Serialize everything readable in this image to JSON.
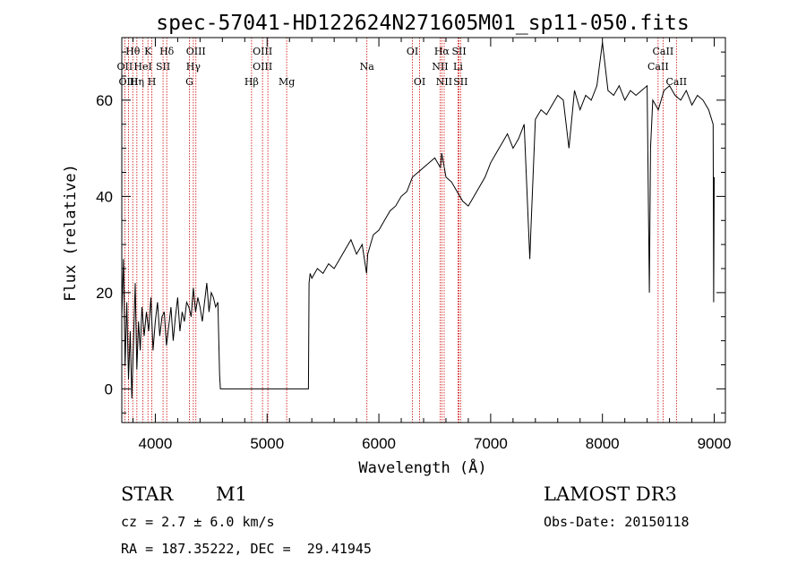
{
  "chart_data": {
    "type": "line",
    "title": "spec-57041-HD122624N271605M01_sp11-050.fits",
    "xlabel": "Wavelength (Å)",
    "ylabel": "Flux (relative)",
    "xlim": [
      3700,
      9100
    ],
    "ylim": [
      -7,
      73
    ],
    "xticks": [
      4000,
      5000,
      6000,
      7000,
      8000,
      9000
    ],
    "yticks": [
      0,
      20,
      40,
      60
    ],
    "grid": false,
    "series": [
      {
        "x": [
          3700,
          3715,
          3730,
          3745,
          3760,
          3775,
          3790,
          3805,
          3820,
          3835,
          3850,
          3865,
          3880,
          3900,
          3920,
          3940,
          3960,
          3980,
          4000,
          4020,
          4040,
          4060,
          4080,
          4100,
          4120,
          4140,
          4160,
          4180,
          4200,
          4220,
          4240,
          4260,
          4280,
          4300,
          4320,
          4340,
          4360,
          4380,
          4400,
          4420,
          4440,
          4460,
          4480,
          4500,
          4520,
          4540,
          4560,
          4575,
          4582,
          4700,
          4800,
          4900,
          5000,
          5100,
          5200,
          5300,
          5370,
          5375,
          5385,
          5400,
          5450,
          5500,
          5550,
          5600,
          5650,
          5700,
          5750,
          5800,
          5850,
          5890,
          5900,
          5950,
          6000,
          6050,
          6100,
          6150,
          6200,
          6250,
          6300,
          6350,
          6400,
          6450,
          6500,
          6550,
          6562,
          6600,
          6650,
          6700,
          6750,
          6800,
          6850,
          6900,
          6950,
          7000,
          7050,
          7100,
          7150,
          7200,
          7250,
          7300,
          7350,
          7360,
          7400,
          7450,
          7500,
          7550,
          7600,
          7650,
          7700,
          7750,
          7800,
          7850,
          7900,
          7950,
          8000,
          8050,
          8100,
          8150,
          8200,
          8250,
          8300,
          8350,
          8400,
          8420,
          8430,
          8450,
          8500,
          8550,
          8600,
          8650,
          8700,
          8750,
          8800,
          8850,
          8900,
          8950,
          8990,
          8995,
          9000
        ],
        "y": [
          15,
          27,
          5,
          18,
          2,
          12,
          -2,
          10,
          22,
          4,
          14,
          8,
          17,
          11,
          16,
          12,
          19,
          8,
          14,
          18,
          11,
          15,
          16,
          9,
          13,
          17,
          10,
          15,
          19,
          12,
          16,
          14,
          18,
          17,
          15,
          21,
          16,
          19,
          17,
          14,
          18,
          22,
          16,
          20,
          19,
          17,
          18,
          3,
          0,
          0,
          0,
          0,
          0,
          0,
          0,
          0,
          0,
          22,
          24,
          23,
          25,
          24,
          26,
          25,
          27,
          29,
          31,
          28,
          30,
          24,
          28,
          32,
          33,
          35,
          37,
          38,
          40,
          41,
          44,
          45,
          46,
          47,
          48,
          46,
          49,
          44,
          43,
          41,
          39,
          38,
          40,
          42,
          44,
          47,
          49,
          51,
          53,
          50,
          52,
          55,
          27,
          33,
          56,
          58,
          57,
          59,
          61,
          60,
          50,
          62,
          58,
          61,
          60,
          63,
          72,
          62,
          61,
          63,
          60,
          62,
          61,
          62,
          63,
          20,
          50,
          60,
          58,
          62,
          63,
          61,
          60,
          62,
          59,
          61,
          60,
          58,
          55,
          18,
          44
        ]
      }
    ],
    "line_markers": [
      {
        "label": "Hθ",
        "x": 3798,
        "row": 1
      },
      {
        "label": "OII",
        "x": 3727,
        "row": 2
      },
      {
        "label": "OIII",
        "x": 3760,
        "row": 3
      },
      {
        "label": "K",
        "x": 3934,
        "row": 1
      },
      {
        "label": "HeI",
        "x": 3889,
        "row": 2
      },
      {
        "label": "Hη",
        "x": 3835,
        "row": 3
      },
      {
        "label": "Hδ",
        "x": 4102,
        "row": 1
      },
      {
        "label": "SII",
        "x": 4069,
        "row": 2
      },
      {
        "label": "H",
        "x": 3969,
        "row": 3
      },
      {
        "label": "OIII",
        "x": 4363,
        "row": 1
      },
      {
        "label": "Hγ",
        "x": 4340,
        "row": 2
      },
      {
        "label": "G",
        "x": 4305,
        "row": 3
      },
      {
        "label": "OIII",
        "x": 4959,
        "row": 1
      },
      {
        "label": "OIII",
        "x": 4959,
        "row": 2
      },
      {
        "label": "Hβ",
        "x": 4861,
        "row": 3
      },
      {
        "label": "Mg",
        "x": 5175,
        "row": 3
      },
      {
        "label": "Na",
        "x": 5893,
        "row": 2
      },
      {
        "label": "OI",
        "x": 6300,
        "row": 1
      },
      {
        "label": "OI",
        "x": 6364,
        "row": 3
      },
      {
        "label": "Hα",
        "x": 6563,
        "row": 1
      },
      {
        "label": "SII",
        "x": 6717,
        "row": 1
      },
      {
        "label": "NII",
        "x": 6548,
        "row": 2
      },
      {
        "label": "Li",
        "x": 6708,
        "row": 2
      },
      {
        "label": "NII",
        "x": 6584,
        "row": 3
      },
      {
        "label": "SII",
        "x": 6731,
        "row": 3
      },
      {
        "label": "CaII",
        "x": 8542,
        "row": 1
      },
      {
        "label": "CaII",
        "x": 8498,
        "row": 2
      },
      {
        "label": "CaII",
        "x": 8662,
        "row": 3
      }
    ],
    "marker_lines": [
      3727,
      3760,
      3798,
      3835,
      3889,
      3934,
      3969,
      4069,
      4102,
      4305,
      4340,
      4363,
      4861,
      4959,
      5007,
      5175,
      5893,
      6300,
      6364,
      6548,
      6563,
      6584,
      6708,
      6717,
      6731,
      8498,
      8542,
      8662
    ],
    "marker_color": "#cc0000"
  },
  "info": {
    "class": "STAR",
    "subclass": "M1",
    "survey": "LAMOST DR3",
    "cz": "cz = 2.7 ± 6.0 km/s",
    "obs_date": "Obs-Date: 20150118",
    "radec": "RA = 187.35222, DEC =  29.41945"
  }
}
